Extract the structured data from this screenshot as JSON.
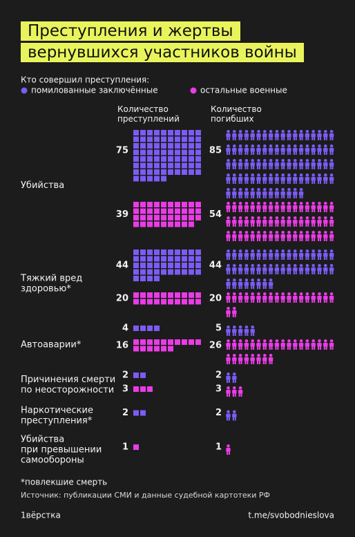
{
  "title": "Преступления и жертвы вернувшихся участников войны",
  "chart_data": {
    "type": "pictogram",
    "legend_title": "Кто совершил преступления:",
    "column_titles": [
      "Количество\nпреступлений",
      "Количество\nпогибших"
    ],
    "categories": [
      "Убийства",
      "Тяжкий вред\nздоровью*",
      "Автоаварии*",
      "Причинения смерти\nпо неосторожности",
      "Наркотические\nпреступления*",
      "Убийства\nпри превышении\nсамообороны"
    ],
    "series": [
      {
        "name": "помилованные заключённые",
        "color": "#7b5cf4",
        "crimes": [
          75,
          44,
          4,
          2,
          2,
          null
        ],
        "deaths": [
          85,
          44,
          5,
          2,
          2,
          null
        ]
      },
      {
        "name": "остальные военные",
        "color": "#e93ce6",
        "crimes": [
          39,
          20,
          16,
          3,
          null,
          1
        ],
        "deaths": [
          54,
          20,
          26,
          3,
          null,
          1
        ]
      }
    ],
    "footnote": "*повлекшие смерть",
    "source": "Источник: публикации СМИ и данные судебной картотеки РФ"
  },
  "footer": {
    "logo": "1вёрстка",
    "link": "t.me/svobodnieslova"
  }
}
